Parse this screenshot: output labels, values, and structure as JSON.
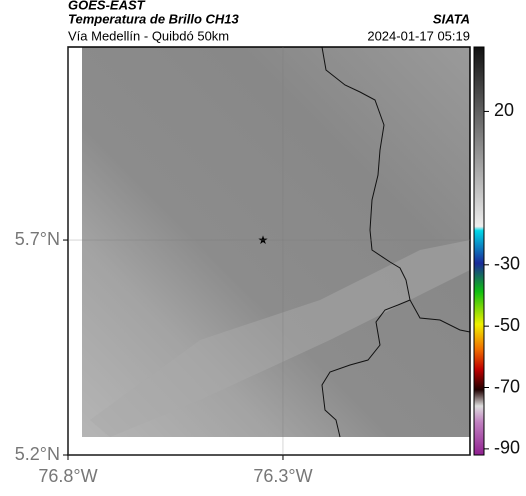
{
  "header": {
    "source": "GOES-EAST",
    "title": "Temperatura de Brillo CH13",
    "brand": "SIATA",
    "subtitle": "Vía Medellín - Quibdó 50km",
    "datetime": "2024-01-17 05:19"
  },
  "map": {
    "xlim": [
      -76.8,
      -75.865
    ],
    "ylim": [
      5.2,
      6.149
    ],
    "xticks": [
      {
        "value": -76.8,
        "label": "76.8°W"
      },
      {
        "value": -76.3,
        "label": "76.3°W"
      }
    ],
    "yticks": [
      {
        "value": 5.7,
        "label": "5.7°N"
      },
      {
        "value": 5.2,
        "label": "5.2°N"
      }
    ]
  },
  "colorbar": {
    "lim": [
      -92,
      41
    ],
    "ticks": [
      20,
      -30,
      -50,
      -70,
      -90
    ]
  }
}
